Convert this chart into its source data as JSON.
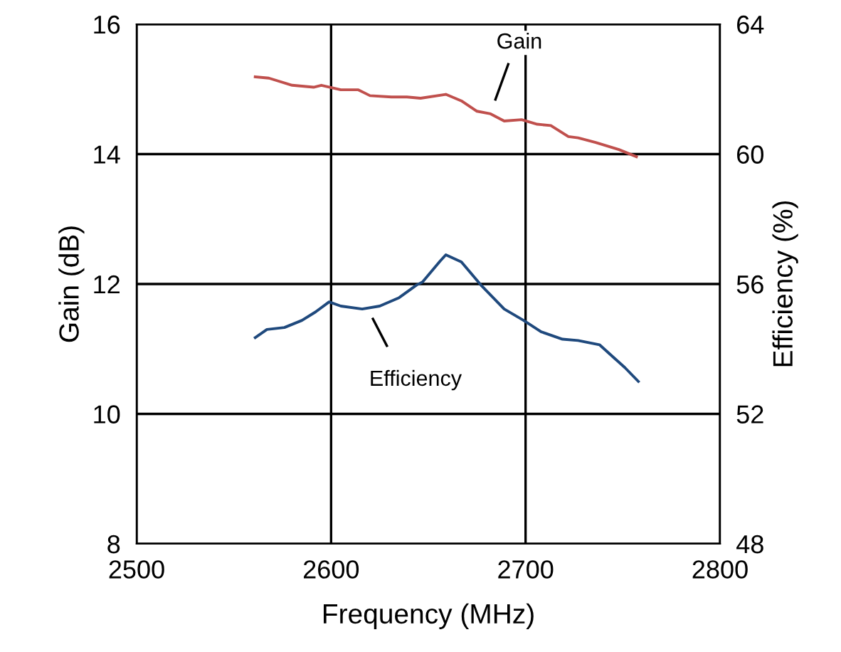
{
  "chart_data": {
    "type": "line",
    "xlabel": "Frequency (MHz)",
    "ylabel": "Gain (dB)",
    "y2label": "Efficiency (%)",
    "xlim": [
      2500,
      2800
    ],
    "xticks": [
      2500,
      2600,
      2700,
      2800
    ],
    "ylim": [
      8,
      16
    ],
    "yticks": [
      8,
      10,
      12,
      14,
      16
    ],
    "y2lim": [
      48,
      64
    ],
    "y2ticks": [
      48,
      52,
      56,
      60,
      64
    ],
    "grid": true,
    "series": [
      {
        "color": "#c0504d",
        "x": [
          2561,
          2568,
          2580,
          2591,
          2595,
          2605,
          2614,
          2620,
          2631,
          2639,
          2646,
          2659,
          2667,
          2675,
          2682,
          2689,
          2698,
          2706,
          2713,
          2722,
          2727,
          2736,
          2748,
          2757
        ],
        "values": [
          15.19,
          15.17,
          15.06,
          15.03,
          15.06,
          14.99,
          14.99,
          14.9,
          14.88,
          14.88,
          14.86,
          14.92,
          14.82,
          14.66,
          14.62,
          14.51,
          14.53,
          14.46,
          14.44,
          14.27,
          14.25,
          14.18,
          14.07,
          13.96
        ]
      },
      {
        "color": "#1f497d",
        "axis": "y2",
        "x": [
          2561,
          2567,
          2576,
          2585,
          2592,
          2599,
          2605,
          2616,
          2625,
          2635,
          2644,
          2647,
          2656,
          2659,
          2667,
          2677,
          2689,
          2699,
          2708,
          2719,
          2727,
          2738,
          2746,
          2751,
          2758
        ],
        "values": [
          54.35,
          54.6,
          54.66,
          54.88,
          55.14,
          55.45,
          55.32,
          55.23,
          55.32,
          55.58,
          55.97,
          56.06,
          56.7,
          56.9,
          56.68,
          55.97,
          55.23,
          54.88,
          54.53,
          54.3,
          54.26,
          54.13,
          53.7,
          53.43,
          53.0
        ]
      }
    ],
    "annotations": [
      "Gain",
      "Efficiency"
    ]
  }
}
